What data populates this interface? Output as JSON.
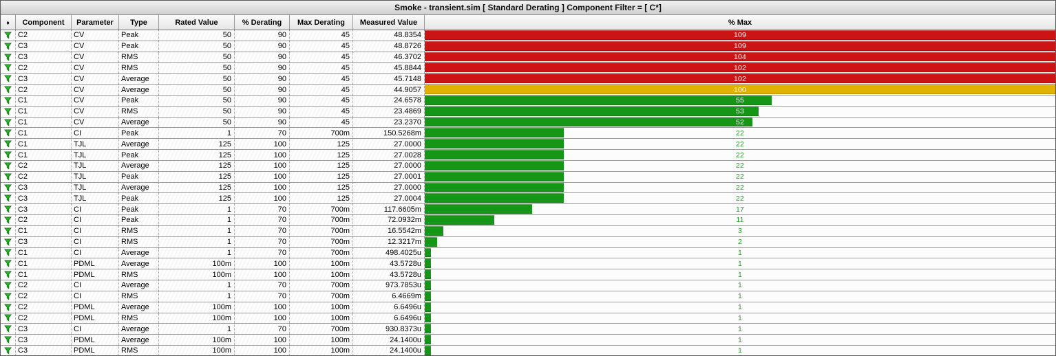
{
  "title": "Smoke - transient.sim  [ Standard Derating ] Component Filter = [ C*]",
  "table": {
    "icon_header": "♦",
    "columns": [
      "Component",
      "Parameter",
      "Type",
      "Rated Value",
      "% Derating",
      "Max Derating",
      "Measured Value",
      "% Max"
    ],
    "row_status_icon": "pass-filter-icon",
    "rows": [
      {
        "component": "C2",
        "parameter": "CV",
        "type": "Peak",
        "rated_value": "50",
        "pct_derating": "90",
        "max_derating": "45",
        "measured_value": "48.8354",
        "pct_max": 109
      },
      {
        "component": "C3",
        "parameter": "CV",
        "type": "Peak",
        "rated_value": "50",
        "pct_derating": "90",
        "max_derating": "45",
        "measured_value": "48.8726",
        "pct_max": 109
      },
      {
        "component": "C3",
        "parameter": "CV",
        "type": "RMS",
        "rated_value": "50",
        "pct_derating": "90",
        "max_derating": "45",
        "measured_value": "46.3702",
        "pct_max": 104
      },
      {
        "component": "C2",
        "parameter": "CV",
        "type": "RMS",
        "rated_value": "50",
        "pct_derating": "90",
        "max_derating": "45",
        "measured_value": "45.8844",
        "pct_max": 102
      },
      {
        "component": "C3",
        "parameter": "CV",
        "type": "Average",
        "rated_value": "50",
        "pct_derating": "90",
        "max_derating": "45",
        "measured_value": "45.7148",
        "pct_max": 102
      },
      {
        "component": "C2",
        "parameter": "CV",
        "type": "Average",
        "rated_value": "50",
        "pct_derating": "90",
        "max_derating": "45",
        "measured_value": "44.9057",
        "pct_max": 100
      },
      {
        "component": "C1",
        "parameter": "CV",
        "type": "Peak",
        "rated_value": "50",
        "pct_derating": "90",
        "max_derating": "45",
        "measured_value": "24.6578",
        "pct_max": 55
      },
      {
        "component": "C1",
        "parameter": "CV",
        "type": "RMS",
        "rated_value": "50",
        "pct_derating": "90",
        "max_derating": "45",
        "measured_value": "23.4869",
        "pct_max": 53
      },
      {
        "component": "C1",
        "parameter": "CV",
        "type": "Average",
        "rated_value": "50",
        "pct_derating": "90",
        "max_derating": "45",
        "measured_value": "23.2370",
        "pct_max": 52
      },
      {
        "component": "C1",
        "parameter": "CI",
        "type": "Peak",
        "rated_value": "1",
        "pct_derating": "70",
        "max_derating": "700m",
        "measured_value": "150.5268m",
        "pct_max": 22
      },
      {
        "component": "C1",
        "parameter": "TJL",
        "type": "Average",
        "rated_value": "125",
        "pct_derating": "100",
        "max_derating": "125",
        "measured_value": "27.0000",
        "pct_max": 22
      },
      {
        "component": "C1",
        "parameter": "TJL",
        "type": "Peak",
        "rated_value": "125",
        "pct_derating": "100",
        "max_derating": "125",
        "measured_value": "27.0028",
        "pct_max": 22
      },
      {
        "component": "C2",
        "parameter": "TJL",
        "type": "Average",
        "rated_value": "125",
        "pct_derating": "100",
        "max_derating": "125",
        "measured_value": "27.0000",
        "pct_max": 22
      },
      {
        "component": "C2",
        "parameter": "TJL",
        "type": "Peak",
        "rated_value": "125",
        "pct_derating": "100",
        "max_derating": "125",
        "measured_value": "27.0001",
        "pct_max": 22
      },
      {
        "component": "C3",
        "parameter": "TJL",
        "type": "Average",
        "rated_value": "125",
        "pct_derating": "100",
        "max_derating": "125",
        "measured_value": "27.0000",
        "pct_max": 22
      },
      {
        "component": "C3",
        "parameter": "TJL",
        "type": "Peak",
        "rated_value": "125",
        "pct_derating": "100",
        "max_derating": "125",
        "measured_value": "27.0004",
        "pct_max": 22
      },
      {
        "component": "C3",
        "parameter": "CI",
        "type": "Peak",
        "rated_value": "1",
        "pct_derating": "70",
        "max_derating": "700m",
        "measured_value": "117.6605m",
        "pct_max": 17
      },
      {
        "component": "C2",
        "parameter": "CI",
        "type": "Peak",
        "rated_value": "1",
        "pct_derating": "70",
        "max_derating": "700m",
        "measured_value": "72.0932m",
        "pct_max": 11
      },
      {
        "component": "C1",
        "parameter": "CI",
        "type": "RMS",
        "rated_value": "1",
        "pct_derating": "70",
        "max_derating": "700m",
        "measured_value": "16.5542m",
        "pct_max": 3
      },
      {
        "component": "C3",
        "parameter": "CI",
        "type": "RMS",
        "rated_value": "1",
        "pct_derating": "70",
        "max_derating": "700m",
        "measured_value": "12.3217m",
        "pct_max": 2
      },
      {
        "component": "C1",
        "parameter": "CI",
        "type": "Average",
        "rated_value": "1",
        "pct_derating": "70",
        "max_derating": "700m",
        "measured_value": "498.4025u",
        "pct_max": 1
      },
      {
        "component": "C1",
        "parameter": "PDML",
        "type": "Average",
        "rated_value": "100m",
        "pct_derating": "100",
        "max_derating": "100m",
        "measured_value": "43.5728u",
        "pct_max": 1
      },
      {
        "component": "C1",
        "parameter": "PDML",
        "type": "RMS",
        "rated_value": "100m",
        "pct_derating": "100",
        "max_derating": "100m",
        "measured_value": "43.5728u",
        "pct_max": 1
      },
      {
        "component": "C2",
        "parameter": "CI",
        "type": "Average",
        "rated_value": "1",
        "pct_derating": "70",
        "max_derating": "700m",
        "measured_value": "973.7853u",
        "pct_max": 1
      },
      {
        "component": "C2",
        "parameter": "CI",
        "type": "RMS",
        "rated_value": "1",
        "pct_derating": "70",
        "max_derating": "700m",
        "measured_value": "6.4669m",
        "pct_max": 1
      },
      {
        "component": "C2",
        "parameter": "PDML",
        "type": "Average",
        "rated_value": "100m",
        "pct_derating": "100",
        "max_derating": "100m",
        "measured_value": "6.6496u",
        "pct_max": 1
      },
      {
        "component": "C2",
        "parameter": "PDML",
        "type": "RMS",
        "rated_value": "100m",
        "pct_derating": "100",
        "max_derating": "100m",
        "measured_value": "6.6496u",
        "pct_max": 1
      },
      {
        "component": "C3",
        "parameter": "CI",
        "type": "Average",
        "rated_value": "1",
        "pct_derating": "70",
        "max_derating": "700m",
        "measured_value": "930.8373u",
        "pct_max": 1
      },
      {
        "component": "C3",
        "parameter": "PDML",
        "type": "Average",
        "rated_value": "100m",
        "pct_derating": "100",
        "max_derating": "100m",
        "measured_value": "24.1400u",
        "pct_max": 1
      },
      {
        "component": "C3",
        "parameter": "PDML",
        "type": "RMS",
        "rated_value": "100m",
        "pct_derating": "100",
        "max_derating": "100m",
        "measured_value": "24.1400u",
        "pct_max": 1
      }
    ]
  },
  "colors": {
    "over_limit": "#cc1414",
    "at_limit": "#e2b200",
    "under_limit": "#169616",
    "under_limit_text": "#1f9e1f",
    "bar_label_light": "#ffffff"
  }
}
